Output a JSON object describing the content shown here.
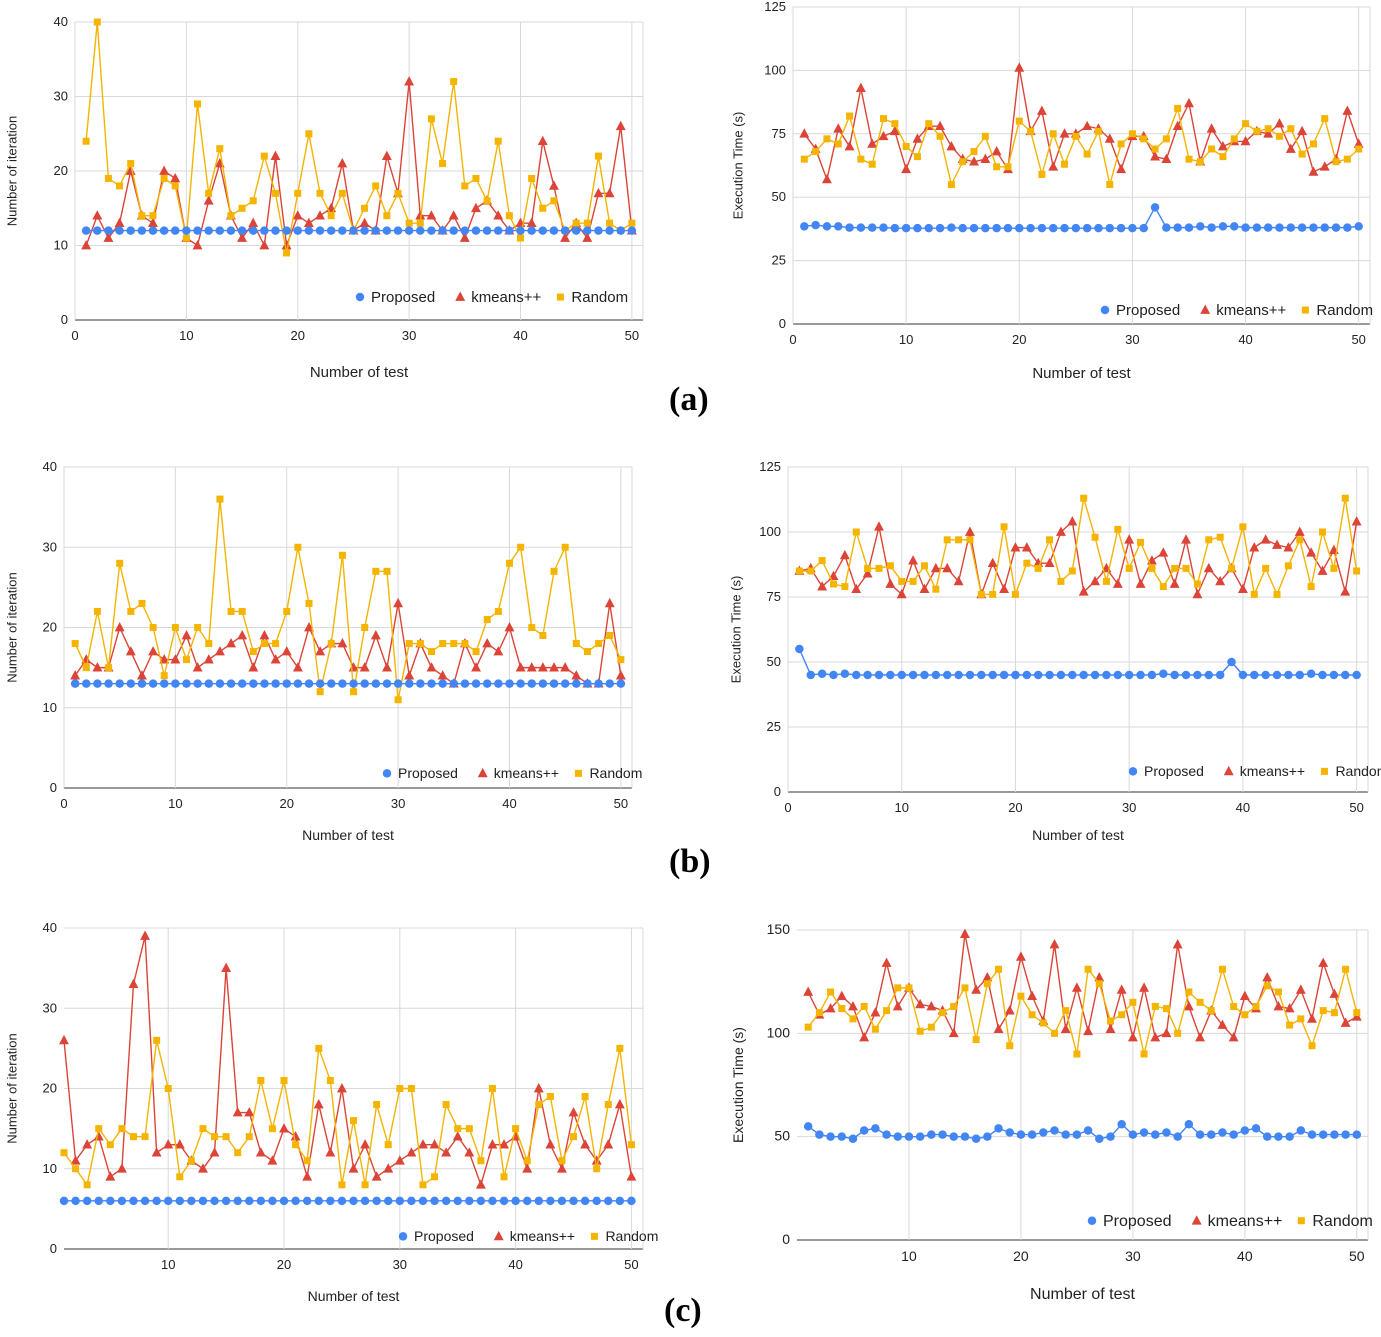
{
  "colors": {
    "proposed": "#4285F4",
    "kmeans": "#DB4437",
    "random": "#F4B400",
    "grid": "#d9d9d9",
    "axis": "#333333"
  },
  "panel_labels": [
    "(a)",
    "(b)",
    "(c)"
  ],
  "chart_data": [
    {
      "id": "a-iter",
      "type": "line",
      "xlabel": "Number of test",
      "ylabel": "Number of iteration",
      "xlim": [
        0,
        51
      ],
      "ylim": [
        0,
        40
      ],
      "xticks": [
        0,
        10,
        20,
        30,
        40,
        50
      ],
      "yticks": [
        0,
        10,
        20,
        30,
        40
      ],
      "legend_position": "bottom-right",
      "series": [
        {
          "name": "Proposed",
          "marker": "circle",
          "values": [
            12,
            12,
            12,
            12,
            12,
            12,
            12,
            12,
            12,
            12,
            12,
            12,
            12,
            12,
            12,
            12,
            12,
            12,
            12,
            12,
            12,
            12,
            12,
            12,
            12,
            12,
            12,
            12,
            12,
            12,
            12,
            12,
            12,
            12,
            12,
            12,
            12,
            12,
            12,
            12,
            12,
            12,
            12,
            12,
            12,
            12,
            12,
            12,
            12,
            12
          ]
        },
        {
          "name": "kmeans++",
          "marker": "triangle",
          "values": [
            10,
            14,
            11,
            13,
            20,
            14,
            13,
            20,
            19,
            11,
            10,
            16,
            21,
            14,
            11,
            13,
            10,
            22,
            10,
            14,
            13,
            14,
            15,
            21,
            12,
            13,
            12,
            22,
            17,
            32,
            14,
            14,
            12,
            14,
            11,
            15,
            16,
            14,
            12,
            13,
            13,
            24,
            18,
            11,
            13,
            11,
            17,
            17,
            26,
            12
          ]
        },
        {
          "name": "Random",
          "marker": "square",
          "values": [
            24,
            40,
            19,
            18,
            21,
            14,
            14,
            19,
            18,
            11,
            29,
            17,
            23,
            14,
            15,
            16,
            22,
            17,
            9,
            17,
            25,
            17,
            14,
            17,
            12,
            15,
            18,
            14,
            17,
            13,
            13,
            27,
            21,
            32,
            18,
            19,
            16,
            24,
            14,
            11,
            19,
            15,
            16,
            12,
            13,
            13,
            22,
            13,
            12,
            13
          ]
        }
      ]
    },
    {
      "id": "a-time",
      "type": "line",
      "xlabel": "Number of test",
      "ylabel": "Execution Time (s)",
      "xlim": [
        0,
        51
      ],
      "ylim": [
        0,
        125
      ],
      "xticks": [
        0,
        10,
        20,
        30,
        40,
        50
      ],
      "yticks": [
        0,
        25,
        50,
        75,
        100,
        125
      ],
      "legend_position": "bottom-right",
      "series": [
        {
          "name": "Proposed",
          "marker": "circle",
          "values": [
            38.5,
            39,
            38.5,
            38.5,
            38,
            38,
            38,
            38,
            37.8,
            37.8,
            37.8,
            37.8,
            37.8,
            38,
            37.8,
            37.8,
            37.8,
            37.8,
            37.8,
            37.8,
            37.8,
            37.8,
            37.8,
            37.8,
            37.8,
            37.8,
            37.8,
            37.8,
            37.8,
            37.8,
            37.8,
            46,
            38,
            38,
            38,
            38.5,
            38,
            38.5,
            38.5,
            38,
            38,
            38,
            38,
            38,
            38,
            38,
            38,
            38,
            38,
            38.5
          ]
        },
        {
          "name": "kmeans++",
          "marker": "triangle",
          "values": [
            75,
            69,
            57,
            77,
            70,
            93,
            71,
            74,
            76,
            61,
            73,
            78,
            78,
            70,
            65,
            64,
            65,
            68,
            61,
            101,
            76,
            84,
            62,
            75,
            75,
            78,
            77,
            73,
            61,
            74,
            74,
            66,
            65,
            78,
            87,
            64,
            77,
            70,
            72,
            72,
            76,
            75,
            79,
            69,
            76,
            60,
            62,
            65,
            84,
            71
          ]
        },
        {
          "name": "Random",
          "marker": "square",
          "values": [
            65,
            68,
            73,
            71,
            82,
            65,
            63,
            81,
            79,
            70,
            66,
            79,
            74,
            55,
            64,
            68,
            74,
            62,
            62,
            80,
            76,
            59,
            75,
            63,
            74,
            67,
            76,
            55,
            71,
            75,
            73,
            69,
            73,
            85,
            65,
            64,
            69,
            66,
            73,
            79,
            76,
            77,
            74,
            77,
            67,
            71,
            81,
            64,
            65,
            69
          ]
        }
      ]
    },
    {
      "id": "b-iter",
      "type": "line",
      "xlabel": "Number of test",
      "ylabel": "Number of iteration",
      "xlim": [
        0,
        51
      ],
      "ylim": [
        0,
        40
      ],
      "xticks": [
        0,
        10,
        20,
        30,
        40,
        50
      ],
      "yticks": [
        0,
        10,
        20,
        30,
        40
      ],
      "legend_position": "bottom-right",
      "series": [
        {
          "name": "Proposed",
          "marker": "circle",
          "values": [
            13,
            13,
            13,
            13,
            13,
            13,
            13,
            13,
            13,
            13,
            13,
            13,
            13,
            13,
            13,
            13,
            13,
            13,
            13,
            13,
            13,
            13,
            13,
            13,
            13,
            13,
            13,
            13,
            13,
            13,
            13,
            13,
            13,
            13,
            13,
            13,
            13,
            13,
            13,
            13,
            13,
            13,
            13,
            13,
            13,
            13,
            13,
            13,
            13,
            13
          ]
        },
        {
          "name": "kmeans++",
          "marker": "triangle",
          "values": [
            14,
            16,
            15,
            15,
            20,
            17,
            14,
            17,
            16,
            16,
            19,
            15,
            16,
            17,
            18,
            19,
            15,
            19,
            16,
            17,
            15,
            20,
            17,
            18,
            18,
            15,
            15,
            19,
            15,
            23,
            14,
            18,
            15,
            14,
            13,
            18,
            15,
            18,
            17,
            20,
            15,
            15,
            15,
            15,
            15,
            14,
            13,
            13,
            23,
            14
          ]
        },
        {
          "name": "Random",
          "marker": "square",
          "values": [
            18,
            15,
            22,
            15,
            28,
            22,
            23,
            20,
            14,
            20,
            16,
            20,
            18,
            36,
            22,
            22,
            17,
            18,
            18,
            22,
            30,
            23,
            12,
            18,
            29,
            12,
            20,
            27,
            27,
            11,
            18,
            18,
            17,
            18,
            18,
            18,
            17,
            21,
            22,
            28,
            30,
            20,
            19,
            27,
            30,
            18,
            17,
            18,
            19,
            16
          ]
        }
      ]
    },
    {
      "id": "b-time",
      "type": "line",
      "xlabel": "Number of test",
      "ylabel": "Execution Time (s)",
      "xlim": [
        0,
        51
      ],
      "ylim": [
        0,
        125
      ],
      "xticks": [
        0,
        10,
        20,
        30,
        40,
        50
      ],
      "yticks": [
        0,
        25,
        50,
        75,
        100,
        125
      ],
      "legend_position": "bottom-right",
      "series": [
        {
          "name": "Proposed",
          "marker": "circle",
          "values": [
            55,
            45,
            45.5,
            45,
            45.5,
            45,
            45,
            45,
            45,
            45,
            45,
            45,
            45,
            45,
            45,
            45,
            45,
            45,
            45,
            45,
            45,
            45,
            45,
            45,
            45,
            45,
            45,
            45,
            45,
            45,
            45,
            45,
            45.5,
            45,
            45,
            45,
            45,
            45,
            50,
            45,
            45,
            45,
            45,
            45,
            45,
            45.5,
            45,
            45,
            45,
            45
          ]
        },
        {
          "name": "kmeans++",
          "marker": "triangle",
          "values": [
            85,
            86,
            79,
            83,
            91,
            78,
            84,
            102,
            80,
            76,
            89,
            78,
            86,
            86,
            81,
            100,
            76,
            88,
            78,
            94,
            94,
            88,
            88,
            100,
            104,
            77,
            81,
            86,
            80,
            97,
            80,
            89,
            92,
            80,
            97,
            76,
            86,
            81,
            86,
            78,
            94,
            97,
            95,
            94,
            100,
            92,
            85,
            93,
            77,
            104
          ]
        },
        {
          "name": "Random",
          "marker": "square",
          "values": [
            85,
            85,
            89,
            80,
            79,
            100,
            86,
            86,
            87,
            81,
            81,
            87,
            78,
            97,
            97,
            97,
            76,
            76,
            102,
            76,
            88,
            86,
            97,
            81,
            85,
            113,
            98,
            81,
            101,
            86,
            96,
            86,
            79,
            86,
            86,
            80,
            97,
            98,
            86,
            102,
            76,
            86,
            76,
            87,
            97,
            79,
            100,
            86,
            113,
            85
          ]
        }
      ]
    },
    {
      "id": "c-iter",
      "type": "line",
      "xlabel": "Number of test",
      "ylabel": "Number of iteration",
      "xlim": [
        1,
        51
      ],
      "ylim": [
        0,
        40
      ],
      "xticks": [
        10,
        20,
        30,
        40,
        50
      ],
      "yticks": [
        0,
        10,
        20,
        30,
        40
      ],
      "legend_position": "bottom-right",
      "series": [
        {
          "name": "Proposed",
          "marker": "circle",
          "values": [
            6,
            6,
            6,
            6,
            6,
            6,
            6,
            6,
            6,
            6,
            6,
            6,
            6,
            6,
            6,
            6,
            6,
            6,
            6,
            6,
            6,
            6,
            6,
            6,
            6,
            6,
            6,
            6,
            6,
            6,
            6,
            6,
            6,
            6,
            6,
            6,
            6,
            6,
            6,
            6,
            6,
            6,
            6,
            6,
            6,
            6,
            6,
            6,
            6,
            6
          ]
        },
        {
          "name": "kmeans++",
          "marker": "triangle",
          "values": [
            26,
            11,
            13,
            14,
            9,
            10,
            33,
            39,
            12,
            13,
            13,
            11,
            10,
            12,
            35,
            17,
            17,
            12,
            11,
            15,
            14,
            9,
            18,
            12,
            20,
            10,
            13,
            9,
            10,
            11,
            12,
            13,
            13,
            12,
            14,
            12,
            8,
            13,
            13,
            14,
            10,
            20,
            13,
            10,
            17,
            13,
            11,
            13,
            18,
            9
          ]
        },
        {
          "name": "Random",
          "marker": "square",
          "values": [
            12,
            10,
            8,
            15,
            13,
            15,
            14,
            14,
            26,
            20,
            9,
            11,
            15,
            14,
            14,
            12,
            14,
            21,
            15,
            21,
            13,
            11,
            25,
            21,
            8,
            16,
            8,
            18,
            13,
            20,
            20,
            8,
            9,
            18,
            15,
            15,
            11,
            20,
            9,
            15,
            11,
            18,
            19,
            11,
            14,
            19,
            10,
            18,
            25,
            13
          ]
        }
      ]
    },
    {
      "id": "c-time",
      "type": "line",
      "xlabel": "Number of test",
      "ylabel": "Execution Time (s)",
      "xlim": [
        0,
        51
      ],
      "ylim": [
        0,
        150
      ],
      "xticks": [
        10,
        20,
        30,
        40,
        50
      ],
      "yticks": [
        0,
        50,
        100,
        150
      ],
      "legend_position": "bottom-right",
      "series": [
        {
          "name": "Proposed",
          "marker": "circle",
          "values": [
            55,
            51,
            50,
            50,
            49,
            53,
            54,
            51,
            50,
            50,
            50,
            51,
            51,
            50,
            50,
            49,
            50,
            54,
            52,
            51,
            51,
            52,
            53,
            51,
            51,
            53,
            49,
            50,
            56,
            51,
            52,
            51,
            52,
            50,
            56,
            51,
            51,
            52,
            51,
            53,
            54,
            50,
            50,
            50,
            53,
            51,
            51,
            51,
            51,
            51
          ]
        },
        {
          "name": "kmeans++",
          "marker": "triangle",
          "values": [
            120,
            109,
            112,
            118,
            113,
            98,
            110,
            134,
            113,
            122,
            114,
            113,
            111,
            100,
            148,
            121,
            127,
            102,
            111,
            137,
            118,
            106,
            143,
            102,
            122,
            101,
            127,
            102,
            121,
            98,
            122,
            98,
            100,
            143,
            113,
            98,
            111,
            104,
            98,
            118,
            112,
            127,
            113,
            112,
            121,
            107,
            134,
            119,
            105,
            108
          ]
        },
        {
          "name": "Random",
          "marker": "square",
          "values": [
            103,
            110,
            120,
            112,
            107,
            113,
            102,
            111,
            122,
            122,
            101,
            103,
            110,
            113,
            122,
            97,
            124,
            131,
            94,
            118,
            109,
            105,
            100,
            111,
            90,
            131,
            124,
            106,
            109,
            115,
            90,
            113,
            112,
            100,
            120,
            115,
            111,
            131,
            113,
            109,
            113,
            123,
            120,
            104,
            107,
            94,
            111,
            110,
            131,
            110
          ]
        }
      ]
    }
  ]
}
